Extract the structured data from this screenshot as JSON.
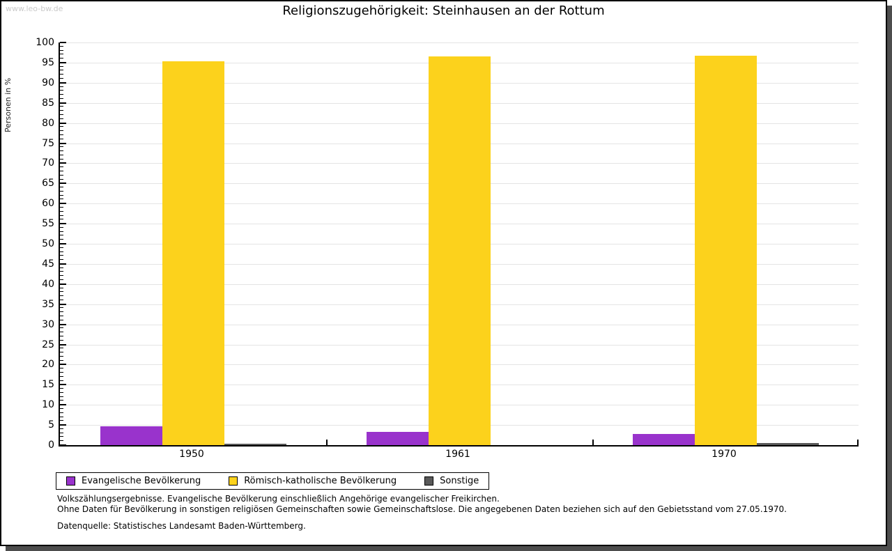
{
  "watermark": "www.leo-bw.de",
  "header": {
    "title": "Religionszugehörigkeit: Steinhausen an der Rottum"
  },
  "chart_data": {
    "type": "bar",
    "title": "Religionszugehörigkeit: Steinhausen an der Rottum",
    "xlabel": "",
    "ylabel": "Personen in %",
    "ylim": [
      0,
      100
    ],
    "ytick_major": 5,
    "ytick_minor": 1,
    "grid": true,
    "legend_position": "bottom",
    "categories": [
      "1950",
      "1961",
      "1970"
    ],
    "series": [
      {
        "name": "Evangelische Bevölkerung",
        "color": "#9933cc",
        "values": [
          4.6,
          3.3,
          2.7
        ]
      },
      {
        "name": "Römisch-katholische Bevölkerung",
        "color": "#fcd21c",
        "values": [
          95.3,
          96.6,
          96.8
        ]
      },
      {
        "name": "Sonstige",
        "color": "#595959",
        "values": [
          0.3,
          0.0,
          0.5
        ]
      }
    ]
  },
  "footnotes": {
    "line1": "Volkszählungsergebnisse. Evangelische Bevölkerung einschließlich Angehörige evangelischer Freikirchen.",
    "line2": "Ohne Daten für Bevölkerung in sonstigen religiösen Gemeinschaften sowie Gemeinschaftslose. Die angegebenen Daten beziehen sich auf den Gebietsstand vom 27.05.1970.",
    "source": "Datenquelle: Statistisches Landesamt Baden-Württemberg."
  }
}
